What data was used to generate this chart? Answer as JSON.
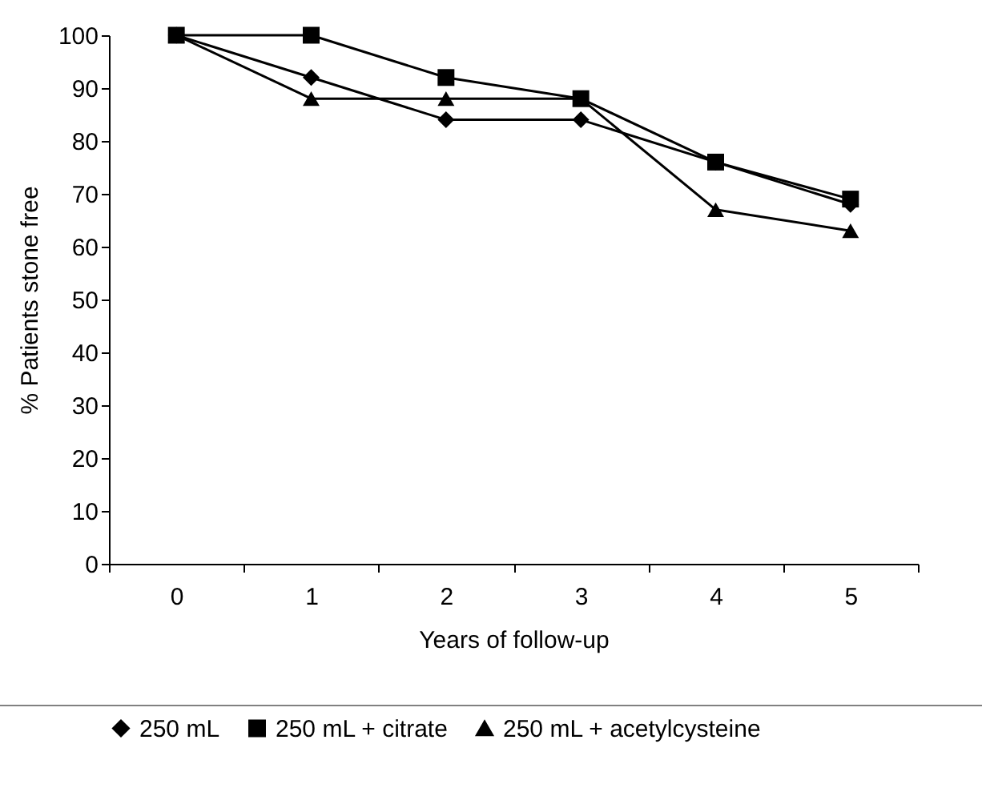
{
  "chart_data": {
    "type": "line",
    "xlabel": "Years of follow-up",
    "ylabel": "% Patients stone free",
    "categories": [
      "0",
      "1",
      "2",
      "3",
      "4",
      "5"
    ],
    "series": [
      {
        "name": "250 mL",
        "color": "#000000",
        "marker": "diamond",
        "values": [
          100,
          92,
          84,
          84,
          76,
          68
        ]
      },
      {
        "name": "250 mL + citrate",
        "color": "#000000",
        "marker": "square",
        "values": [
          100,
          100,
          92,
          88,
          76,
          69
        ]
      },
      {
        "name": "250 mL + acetylcysteine",
        "color": "#000000",
        "marker": "triangle",
        "values": [
          100,
          88,
          88,
          88,
          67,
          63
        ]
      }
    ],
    "ylim": [
      0,
      100
    ],
    "yticks": [
      0,
      10,
      20,
      30,
      40,
      50,
      60,
      70,
      80,
      90,
      100
    ],
    "grid": false,
    "legend": "bottom",
    "line_style": "solid"
  }
}
